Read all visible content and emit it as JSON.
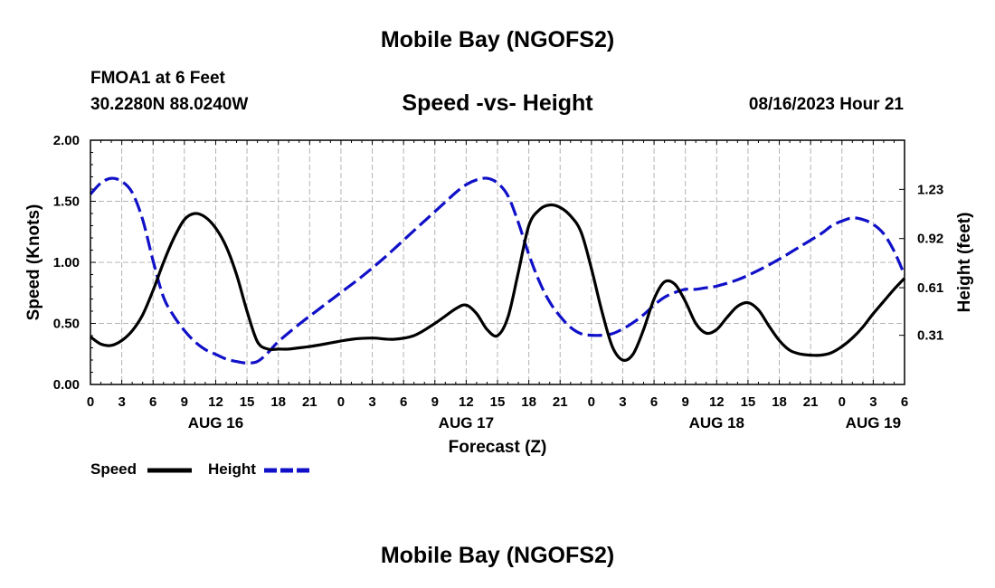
{
  "header": {
    "title": "Mobile Bay (NGOFS2)",
    "station": "FMOA1 at 6 Feet",
    "coordinates": "30.2280N  88.0240W",
    "subtitle": "Speed -vs- Height",
    "datetime": "08/16/2023 Hour 21"
  },
  "footer": {
    "title": "Mobile Bay (NGOFS2)"
  },
  "legend": {
    "speed_label": "Speed",
    "height_label": "Height",
    "speed_color": "#000000",
    "height_color": "#1010c8"
  },
  "chart_data": {
    "type": "line",
    "title": "Speed -vs- Height",
    "xlabel": "Forecast (Z)",
    "ylabel": "Speed (Knots)",
    "y2label": "Height (feet)",
    "xlim": [
      0,
      78
    ],
    "ylim": [
      0,
      2
    ],
    "y2lim": [
      0.0,
      1.54
    ],
    "grid": true,
    "legend_position": "bottom-left",
    "x_ticks": [
      0,
      3,
      6,
      9,
      12,
      15,
      18,
      21,
      24,
      27,
      30,
      33,
      36,
      39,
      42,
      45,
      48,
      51,
      54,
      57,
      60,
      63,
      66,
      69,
      72,
      75,
      78
    ],
    "x_tick_labels": [
      "0",
      "3",
      "6",
      "9",
      "12",
      "15",
      "18",
      "21",
      "0",
      "3",
      "6",
      "9",
      "12",
      "15",
      "18",
      "21",
      "0",
      "3",
      "6",
      "9",
      "12",
      "15",
      "18",
      "21",
      "0",
      "3",
      "6"
    ],
    "date_labels": [
      {
        "x": 12,
        "label": "AUG 16"
      },
      {
        "x": 36,
        "label": "AUG 17"
      },
      {
        "x": 60,
        "label": "AUG 18"
      },
      {
        "x": 75,
        "label": "AUG 19"
      }
    ],
    "y_ticks": [
      0,
      0.5,
      1,
      1.5,
      2
    ],
    "y_tick_labels": [
      "0.00",
      "0.50",
      "1.00",
      "1.50",
      "2.00"
    ],
    "y2_ticks": [
      0.31,
      0.61,
      0.92,
      1.23
    ],
    "y2_tick_labels": [
      "0.31",
      "0.61",
      "0.92",
      "1.23"
    ],
    "series": [
      {
        "name": "Speed",
        "axis": "left",
        "color": "#000000",
        "dash": "solid",
        "x": [
          0,
          1,
          2,
          3,
          4,
          5,
          6,
          7,
          8,
          9,
          10,
          11,
          12,
          13,
          14,
          15,
          16,
          17,
          18,
          19,
          20,
          21,
          23,
          25,
          27,
          29,
          31,
          33,
          35,
          36,
          37,
          38,
          39,
          40,
          41,
          42,
          43,
          44,
          45,
          46,
          47,
          48,
          49,
          50,
          51,
          52,
          53,
          54,
          55,
          56,
          57,
          58,
          59,
          60,
          61,
          62,
          63,
          64,
          65,
          66,
          67,
          68,
          69,
          70,
          71,
          72,
          73,
          74,
          75,
          76,
          77,
          78
        ],
        "values": [
          0.39,
          0.33,
          0.32,
          0.36,
          0.44,
          0.57,
          0.77,
          1.0,
          1.2,
          1.35,
          1.4,
          1.37,
          1.28,
          1.13,
          0.9,
          0.6,
          0.35,
          0.29,
          0.29,
          0.29,
          0.3,
          0.31,
          0.34,
          0.37,
          0.38,
          0.37,
          0.4,
          0.5,
          0.62,
          0.65,
          0.58,
          0.45,
          0.4,
          0.55,
          0.92,
          1.3,
          1.43,
          1.47,
          1.45,
          1.38,
          1.25,
          0.95,
          0.6,
          0.31,
          0.2,
          0.25,
          0.45,
          0.7,
          0.84,
          0.82,
          0.68,
          0.5,
          0.42,
          0.45,
          0.55,
          0.64,
          0.67,
          0.61,
          0.48,
          0.36,
          0.28,
          0.25,
          0.24,
          0.24,
          0.26,
          0.31,
          0.38,
          0.47,
          0.58,
          0.68,
          0.78,
          0.87
        ]
      },
      {
        "name": "Height",
        "axis": "right",
        "color": "#1010c8",
        "dash": "dashed",
        "x": [
          0,
          1,
          2,
          3,
          4,
          5,
          6,
          7,
          8,
          9,
          10,
          11,
          12,
          13,
          14,
          15,
          16,
          17,
          18,
          20,
          22,
          24,
          26,
          28,
          30,
          32,
          34,
          35,
          36,
          37,
          38,
          39,
          40,
          41,
          42,
          43,
          44,
          45,
          46,
          47,
          48,
          49,
          50,
          51,
          52,
          53,
          54,
          55,
          56,
          57,
          58,
          59,
          60,
          62,
          64,
          66,
          68,
          70,
          71,
          72,
          73,
          74,
          75,
          76,
          77,
          78
        ],
        "values": [
          1.2,
          1.27,
          1.3,
          1.28,
          1.21,
          1.04,
          0.78,
          0.55,
          0.43,
          0.34,
          0.27,
          0.22,
          0.19,
          0.16,
          0.145,
          0.135,
          0.145,
          0.2,
          0.27,
          0.38,
          0.48,
          0.58,
          0.68,
          0.79,
          0.91,
          1.03,
          1.15,
          1.21,
          1.26,
          1.29,
          1.3,
          1.27,
          1.19,
          1.02,
          0.82,
          0.65,
          0.52,
          0.43,
          0.36,
          0.32,
          0.31,
          0.31,
          0.32,
          0.35,
          0.39,
          0.44,
          0.5,
          0.55,
          0.58,
          0.6,
          0.6,
          0.61,
          0.62,
          0.66,
          0.72,
          0.79,
          0.87,
          0.95,
          1.0,
          1.03,
          1.05,
          1.04,
          1.01,
          0.95,
          0.84,
          0.69
        ]
      }
    ]
  }
}
